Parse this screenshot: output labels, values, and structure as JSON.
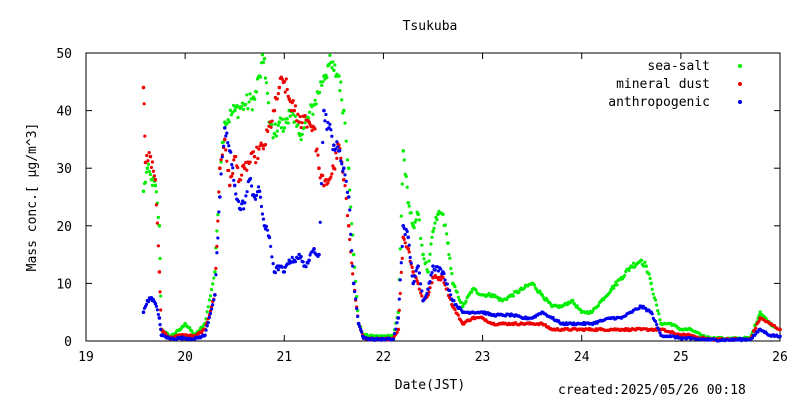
{
  "created_label": "created:2025/05/26 00:18",
  "chart_data": {
    "type": "scatter",
    "title": "Tsukuba",
    "xlabel": "Date(JST)",
    "ylabel": "Mass conc.[ μg/m^3]",
    "xlim": [
      19,
      26
    ],
    "ylim": [
      0,
      50
    ],
    "x_ticks": [
      "19",
      "20",
      "21",
      "22",
      "23",
      "24",
      "25",
      "26"
    ],
    "y_ticks": [
      "0",
      "10",
      "20",
      "30",
      "40",
      "50"
    ],
    "legend_position": "top-right",
    "grid": false,
    "series": [
      {
        "name": "sea-salt",
        "color": "#00ee00",
        "points": [
          [
            19.58,
            26
          ],
          [
            19.62,
            30
          ],
          [
            19.66,
            28
          ],
          [
            19.7,
            27
          ],
          [
            19.74,
            20
          ],
          [
            19.76,
            2
          ],
          [
            19.85,
            0.8
          ],
          [
            19.95,
            2
          ],
          [
            20.0,
            3
          ],
          [
            20.1,
            1
          ],
          [
            20.2,
            3
          ],
          [
            20.3,
            12
          ],
          [
            20.35,
            30
          ],
          [
            20.4,
            38
          ],
          [
            20.5,
            40
          ],
          [
            20.6,
            41
          ],
          [
            20.7,
            42
          ],
          [
            20.75,
            46
          ],
          [
            20.8,
            49
          ],
          [
            20.85,
            38
          ],
          [
            20.9,
            36
          ],
          [
            20.95,
            38
          ],
          [
            21.0,
            37
          ],
          [
            21.05,
            40
          ],
          [
            21.1,
            38
          ],
          [
            21.15,
            36
          ],
          [
            21.2,
            37
          ],
          [
            21.3,
            41
          ],
          [
            21.4,
            46
          ],
          [
            21.45,
            48
          ],
          [
            21.5,
            47
          ],
          [
            21.55,
            46
          ],
          [
            21.6,
            40
          ],
          [
            21.65,
            30
          ],
          [
            21.7,
            15
          ],
          [
            21.75,
            3
          ],
          [
            21.8,
            1
          ],
          [
            21.9,
            0.8
          ],
          [
            22.0,
            0.8
          ],
          [
            22.1,
            1
          ],
          [
            22.15,
            5
          ],
          [
            22.2,
            33
          ],
          [
            22.25,
            24
          ],
          [
            22.3,
            20
          ],
          [
            22.35,
            22
          ],
          [
            22.4,
            15
          ],
          [
            22.45,
            12
          ],
          [
            22.5,
            19
          ],
          [
            22.55,
            22
          ],
          [
            22.6,
            22
          ],
          [
            22.65,
            17
          ],
          [
            22.7,
            10
          ],
          [
            22.8,
            6
          ],
          [
            22.9,
            9
          ],
          [
            23.0,
            8
          ],
          [
            23.1,
            8
          ],
          [
            23.2,
            7
          ],
          [
            23.3,
            8
          ],
          [
            23.4,
            9
          ],
          [
            23.5,
            10
          ],
          [
            23.6,
            8
          ],
          [
            23.7,
            6
          ],
          [
            23.8,
            6
          ],
          [
            23.9,
            7
          ],
          [
            24.0,
            5
          ],
          [
            24.1,
            5
          ],
          [
            24.2,
            7
          ],
          [
            24.3,
            9
          ],
          [
            24.4,
            11
          ],
          [
            24.5,
            13
          ],
          [
            24.6,
            14
          ],
          [
            24.65,
            13
          ],
          [
            24.7,
            10
          ],
          [
            24.8,
            3
          ],
          [
            24.9,
            3
          ],
          [
            25.0,
            2
          ],
          [
            25.1,
            2
          ],
          [
            25.2,
            1
          ],
          [
            25.3,
            0.5
          ],
          [
            25.5,
            0.4
          ],
          [
            25.7,
            0.5
          ],
          [
            25.8,
            5
          ],
          [
            25.9,
            3
          ],
          [
            26.0,
            2
          ]
        ]
      },
      {
        "name": "mineral dust",
        "color": "#ee0000",
        "points": [
          [
            19.58,
            44
          ],
          [
            19.6,
            31
          ],
          [
            19.65,
            32
          ],
          [
            19.7,
            28
          ],
          [
            19.74,
            12
          ],
          [
            19.76,
            2
          ],
          [
            19.85,
            0.5
          ],
          [
            19.95,
            1
          ],
          [
            20.0,
            1
          ],
          [
            20.1,
            0.8
          ],
          [
            20.2,
            2
          ],
          [
            20.3,
            8
          ],
          [
            20.35,
            30
          ],
          [
            20.4,
            35
          ],
          [
            20.45,
            27
          ],
          [
            20.5,
            32
          ],
          [
            20.55,
            28
          ],
          [
            20.6,
            30
          ],
          [
            20.7,
            32
          ],
          [
            20.8,
            34
          ],
          [
            20.9,
            40
          ],
          [
            20.95,
            44
          ],
          [
            21.0,
            45
          ],
          [
            21.05,
            42
          ],
          [
            21.1,
            40
          ],
          [
            21.15,
            38
          ],
          [
            21.2,
            39
          ],
          [
            21.25,
            38
          ],
          [
            21.3,
            37
          ],
          [
            21.35,
            30
          ],
          [
            21.4,
            27
          ],
          [
            21.45,
            28
          ],
          [
            21.5,
            30
          ],
          [
            21.55,
            34
          ],
          [
            21.6,
            28
          ],
          [
            21.65,
            20
          ],
          [
            21.7,
            10
          ],
          [
            21.75,
            3
          ],
          [
            21.8,
            0.5
          ],
          [
            21.9,
            0.3
          ],
          [
            22.0,
            0.3
          ],
          [
            22.1,
            0.5
          ],
          [
            22.15,
            2
          ],
          [
            22.2,
            18
          ],
          [
            22.25,
            16
          ],
          [
            22.3,
            12
          ],
          [
            22.35,
            10
          ],
          [
            22.4,
            7
          ],
          [
            22.45,
            8
          ],
          [
            22.5,
            11
          ],
          [
            22.6,
            11
          ],
          [
            22.7,
            6
          ],
          [
            22.8,
            3
          ],
          [
            22.9,
            4
          ],
          [
            23.0,
            4
          ],
          [
            23.1,
            3
          ],
          [
            23.2,
            3
          ],
          [
            23.3,
            3
          ],
          [
            23.4,
            3
          ],
          [
            23.5,
            3
          ],
          [
            23.6,
            3
          ],
          [
            23.7,
            2
          ],
          [
            23.8,
            2
          ],
          [
            23.9,
            2
          ],
          [
            24.0,
            2
          ],
          [
            24.1,
            2
          ],
          [
            24.2,
            2
          ],
          [
            24.3,
            2
          ],
          [
            24.4,
            2
          ],
          [
            24.5,
            2
          ],
          [
            24.6,
            2
          ],
          [
            24.7,
            2
          ],
          [
            24.8,
            2
          ],
          [
            24.9,
            1.5
          ],
          [
            25.0,
            1
          ],
          [
            25.1,
            1
          ],
          [
            25.2,
            0.5
          ],
          [
            25.3,
            0.3
          ],
          [
            25.5,
            0.3
          ],
          [
            25.7,
            0.3
          ],
          [
            25.8,
            4
          ],
          [
            25.9,
            3
          ],
          [
            26.0,
            2
          ]
        ]
      },
      {
        "name": "anthropogenic",
        "color": "#0000ee",
        "points": [
          [
            19.58,
            5
          ],
          [
            19.62,
            7
          ],
          [
            19.66,
            7.5
          ],
          [
            19.7,
            6.5
          ],
          [
            19.74,
            4
          ],
          [
            19.76,
            1
          ],
          [
            19.85,
            0.4
          ],
          [
            19.95,
            0.5
          ],
          [
            20.0,
            0.5
          ],
          [
            20.1,
            0.4
          ],
          [
            20.2,
            1
          ],
          [
            20.3,
            8
          ],
          [
            20.35,
            25
          ],
          [
            20.4,
            37
          ],
          [
            20.45,
            33
          ],
          [
            20.5,
            27
          ],
          [
            20.55,
            23
          ],
          [
            20.6,
            24
          ],
          [
            20.65,
            28
          ],
          [
            20.7,
            25
          ],
          [
            20.75,
            26
          ],
          [
            20.8,
            20
          ],
          [
            20.85,
            18
          ],
          [
            20.9,
            12
          ],
          [
            20.95,
            13
          ],
          [
            21.0,
            12
          ],
          [
            21.05,
            14
          ],
          [
            21.1,
            14
          ],
          [
            21.15,
            15
          ],
          [
            21.2,
            13
          ],
          [
            21.25,
            14
          ],
          [
            21.3,
            16
          ],
          [
            21.35,
            15
          ],
          [
            21.4,
            40
          ],
          [
            21.45,
            37
          ],
          [
            21.5,
            34
          ],
          [
            21.55,
            33
          ],
          [
            21.6,
            30
          ],
          [
            21.65,
            25
          ],
          [
            21.7,
            10
          ],
          [
            21.75,
            3
          ],
          [
            21.8,
            0.5
          ],
          [
            21.9,
            0.3
          ],
          [
            22.0,
            0.3
          ],
          [
            22.1,
            0.3
          ],
          [
            22.15,
            4
          ],
          [
            22.2,
            20
          ],
          [
            22.25,
            18
          ],
          [
            22.3,
            10
          ],
          [
            22.35,
            13
          ],
          [
            22.4,
            7
          ],
          [
            22.45,
            9
          ],
          [
            22.5,
            13
          ],
          [
            22.6,
            12
          ],
          [
            22.7,
            7
          ],
          [
            22.8,
            5
          ],
          [
            22.9,
            5
          ],
          [
            23.0,
            5
          ],
          [
            23.1,
            4.5
          ],
          [
            23.2,
            4.5
          ],
          [
            23.3,
            4.5
          ],
          [
            23.4,
            4
          ],
          [
            23.5,
            4
          ],
          [
            23.6,
            5
          ],
          [
            23.7,
            4
          ],
          [
            23.8,
            3
          ],
          [
            23.9,
            3
          ],
          [
            24.0,
            3
          ],
          [
            24.1,
            3
          ],
          [
            24.2,
            3.5
          ],
          [
            24.3,
            4
          ],
          [
            24.4,
            4
          ],
          [
            24.5,
            5
          ],
          [
            24.6,
            6
          ],
          [
            24.7,
            5
          ],
          [
            24.8,
            1
          ],
          [
            24.9,
            0.8
          ],
          [
            25.0,
            0.5
          ],
          [
            25.1,
            0.4
          ],
          [
            25.2,
            0.3
          ],
          [
            25.3,
            0.2
          ],
          [
            25.5,
            0.2
          ],
          [
            25.7,
            0.3
          ],
          [
            25.8,
            2
          ],
          [
            25.9,
            1
          ],
          [
            26.0,
            0.8
          ]
        ]
      }
    ]
  }
}
